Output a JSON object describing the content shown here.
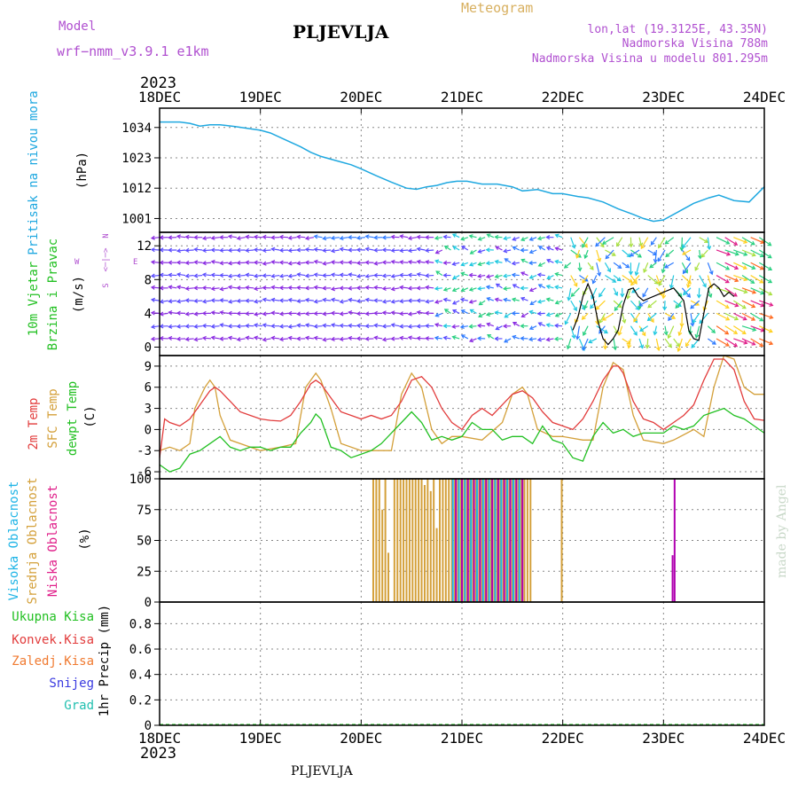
{
  "header": {
    "model_label": "Model",
    "model_value": "wrf−nmm_v3.9.1  e1km",
    "station": "PLJEVLJA",
    "meteogram": "Meteogram",
    "lonlat": "lon,lat (19.3125E, 43.35N)",
    "elevation": "Nadmorska Visina 788m",
    "model_elevation": "Nadmorska Visina u modelu 801.295m",
    "year_top": "2023",
    "year_bottom": "2023",
    "footer_station": "PLJEVLJA",
    "credit": "made by Angel"
  },
  "colors": {
    "pressure": "#1fa8e0",
    "temp2m": "#e23c3c",
    "sfc": "#d4a03a",
    "dew": "#22c022",
    "cloud_high": "#1fb4e6",
    "cloud_mid": "#d4a03a",
    "cloud_low": "#b000b0",
    "wind_label": "#22c022",
    "wind_dir": "#b050d0",
    "precip_total": "#22c022",
    "precip_conv": "#e23c3c",
    "precip_frozen": "#f07a30",
    "snow": "#3a3ae0",
    "hail": "#22c0b0"
  },
  "chart_data": [
    {
      "type": "line",
      "panel": "pressure",
      "ylabel_lines": [
        "Pritisak na nivou mora",
        "(hPa)"
      ],
      "xticks": [
        "18DEC",
        "19DEC",
        "20DEC",
        "21DEC",
        "22DEC",
        "23DEC",
        "24DEC"
      ],
      "yticks": [
        1001,
        1012,
        1023,
        1034
      ],
      "ylim": [
        996,
        1041
      ],
      "grid": true,
      "series": [
        {
          "x": [
            0,
            0.1,
            0.2,
            0.3,
            0.4,
            0.5,
            0.6,
            0.75,
            0.9,
            1.0,
            1.1,
            1.25,
            1.4,
            1.5,
            1.6,
            1.75,
            1.9,
            2.0,
            2.15,
            2.3,
            2.45,
            2.55,
            2.65,
            2.75,
            2.85,
            2.95,
            3.05,
            3.2,
            3.35,
            3.5,
            3.6,
            3.75,
            3.9,
            4.0,
            4.15,
            4.25,
            4.4,
            4.55,
            4.7,
            4.8,
            4.9,
            5.0,
            5.15,
            5.3,
            5.45,
            5.55,
            5.7,
            5.85,
            6.0
          ],
          "y": [
            1036,
            1036,
            1036,
            1035.5,
            1034.5,
            1035,
            1035,
            1034.3,
            1033.5,
            1033,
            1032,
            1029.5,
            1027,
            1025,
            1023.5,
            1022,
            1020.5,
            1019,
            1016.5,
            1014.2,
            1012,
            1011.6,
            1012.5,
            1013,
            1014,
            1014.5,
            1014.5,
            1013.5,
            1013.5,
            1012.5,
            1011,
            1011.5,
            1010,
            1010,
            1009,
            1008.5,
            1007,
            1004.5,
            1002.5,
            1001,
            1000,
            1000.5,
            1003.5,
            1006.5,
            1008.5,
            1009.5,
            1007.5,
            1007,
            1012.5
          ]
        }
      ]
    },
    {
      "type": "line",
      "panel": "wind",
      "ylabel_lines": [
        "10m Vjetar",
        "Brzina i Pravac",
        "(m/s)"
      ],
      "compass": [
        "W",
        "<─|─>",
        "E",
        "N",
        "S"
      ],
      "yticks": [
        0,
        4,
        8,
        12
      ],
      "ylim": [
        -1,
        13.6
      ],
      "grid": true,
      "series": [
        {
          "name": "speed",
          "x": [
            4.1,
            4.15,
            4.2,
            4.25,
            4.3,
            4.35,
            4.4,
            4.45,
            4.5,
            4.55,
            4.6,
            4.65,
            4.7,
            4.75,
            4.8,
            5.1,
            5.2,
            5.25,
            5.3,
            5.35,
            5.4,
            5.45,
            5.5,
            5.55,
            5.6,
            5.65,
            5.7
          ],
          "y": [
            2,
            3.5,
            6,
            7.5,
            6,
            3,
            1,
            0.3,
            1,
            2,
            5,
            6.8,
            7,
            6,
            5.5,
            7,
            5.5,
            2,
            1,
            0.8,
            4,
            7,
            7.5,
            7,
            6,
            6.5,
            6
          ]
        }
      ]
    },
    {
      "type": "line",
      "panel": "temperature",
      "ylabel_lines": [
        "2m Temp",
        "SFC Temp",
        "dewpt Temp",
        "(C)"
      ],
      "yticks": [
        -6,
        -3,
        0,
        3,
        6,
        9
      ],
      "ylim": [
        -7,
        10.5
      ],
      "grid": true,
      "series": [
        {
          "name": "2m Temp",
          "x": [
            0,
            0.05,
            0.1,
            0.2,
            0.3,
            0.4,
            0.5,
            0.55,
            0.6,
            0.7,
            0.8,
            0.9,
            1.0,
            1.1,
            1.2,
            1.3,
            1.4,
            1.5,
            1.55,
            1.6,
            1.7,
            1.8,
            1.9,
            2.0,
            2.1,
            2.2,
            2.3,
            2.4,
            2.5,
            2.6,
            2.7,
            2.8,
            2.9,
            3.0,
            3.1,
            3.2,
            3.3,
            3.4,
            3.5,
            3.6,
            3.7,
            3.8,
            3.9,
            4.0,
            4.1,
            4.2,
            4.3,
            4.4,
            4.5,
            4.55,
            4.6,
            4.7,
            4.8,
            4.9,
            5.0,
            5.1,
            5.2,
            5.3,
            5.4,
            5.5,
            5.6,
            5.7,
            5.8,
            5.9,
            6.0
          ],
          "y": [
            -4,
            1.5,
            1,
            0.5,
            1.5,
            3.5,
            5.5,
            6,
            5.5,
            4,
            2.5,
            2,
            1.5,
            1.3,
            1.2,
            2,
            4,
            6.5,
            7,
            6.5,
            4.5,
            2.5,
            2,
            1.5,
            2,
            1.5,
            2,
            4,
            7,
            7.5,
            6,
            3,
            1,
            0,
            2,
            3,
            2,
            3.5,
            5,
            5.5,
            4.5,
            2.5,
            1,
            0.5,
            0,
            1.5,
            4,
            7,
            9,
            9,
            8,
            4,
            1.5,
            1,
            0,
            1,
            2,
            3.5,
            7,
            10,
            10,
            8.5,
            4,
            1.5,
            1.3
          ]
        },
        {
          "name": "SFC Temp",
          "x": [
            0,
            0.1,
            0.2,
            0.3,
            0.35,
            0.45,
            0.5,
            0.55,
            0.6,
            0.7,
            0.9,
            1.0,
            1.2,
            1.35,
            1.45,
            1.55,
            1.6,
            1.7,
            1.8,
            2.0,
            2.2,
            2.3,
            2.4,
            2.5,
            2.6,
            2.7,
            2.8,
            2.9,
            3.0,
            3.2,
            3.4,
            3.5,
            3.6,
            3.65,
            3.75,
            3.9,
            4.0,
            4.2,
            4.3,
            4.4,
            4.5,
            4.6,
            4.7,
            4.8,
            5.0,
            5.1,
            5.3,
            5.4,
            5.5,
            5.6,
            5.7,
            5.8,
            5.9,
            6.0
          ],
          "y": [
            -3,
            -2.5,
            -3,
            -2,
            3,
            6,
            7,
            6,
            2,
            -1.5,
            -2.5,
            -3,
            -2.5,
            -2,
            6,
            8,
            7,
            3,
            -2,
            -3,
            -3,
            -3,
            5,
            8,
            6,
            0,
            -2,
            -1,
            -1,
            -1.5,
            1,
            5,
            6,
            5,
            0,
            -1,
            -1,
            -1.5,
            -1.5,
            6,
            9.5,
            8.5,
            2,
            -1.5,
            -2,
            -1.5,
            0,
            -1,
            6,
            10.5,
            10,
            6,
            5,
            5
          ]
        },
        {
          "name": "dewpt Temp",
          "x": [
            0,
            0.1,
            0.2,
            0.3,
            0.4,
            0.5,
            0.6,
            0.7,
            0.8,
            0.9,
            1.0,
            1.1,
            1.2,
            1.3,
            1.4,
            1.5,
            1.55,
            1.6,
            1.7,
            1.8,
            1.9,
            2.0,
            2.1,
            2.2,
            2.3,
            2.4,
            2.5,
            2.6,
            2.7,
            2.8,
            2.9,
            3.0,
            3.1,
            3.2,
            3.3,
            3.4,
            3.5,
            3.6,
            3.7,
            3.8,
            3.9,
            4.0,
            4.1,
            4.2,
            4.3,
            4.4,
            4.5,
            4.6,
            4.7,
            4.8,
            4.9,
            5.0,
            5.1,
            5.2,
            5.3,
            5.4,
            5.5,
            5.6,
            5.7,
            5.8,
            5.9,
            6.0
          ],
          "y": [
            -5,
            -6,
            -5.5,
            -3.5,
            -3,
            -2,
            -1,
            -2.5,
            -3,
            -2.5,
            -2.5,
            -3,
            -2.5,
            -2.5,
            -0.5,
            1,
            2.2,
            1.5,
            -2.5,
            -3,
            -4,
            -3.5,
            -3,
            -2,
            -0.5,
            1,
            2.5,
            1,
            -1.5,
            -1,
            -1.5,
            -1,
            1,
            0,
            0,
            -1.5,
            -1,
            -1,
            -2,
            0.5,
            -1.5,
            -2,
            -4,
            -4.5,
            -1,
            1,
            -0.5,
            0,
            -1,
            -0.5,
            -0.5,
            -0.5,
            0.5,
            0,
            0.5,
            2,
            2.5,
            3,
            2,
            1.5,
            0.5,
            -0.5
          ]
        }
      ]
    },
    {
      "type": "bar",
      "panel": "clouds",
      "ylabel_lines": [
        "Visoka Oblacnost",
        "Srednja Oblacnost",
        "Niska Oblacnost",
        "(%)"
      ],
      "yticks": [
        0,
        25,
        50,
        75,
        100
      ],
      "ylim": [
        0,
        100
      ],
      "grid": true,
      "bars_mid": {
        "x": [
          2.12,
          2.15,
          2.18,
          2.21,
          2.24,
          2.27,
          2.33,
          2.36,
          2.39,
          2.42,
          2.45,
          2.48,
          2.51,
          2.54,
          2.57,
          2.6,
          2.63,
          2.66,
          2.69,
          2.72,
          2.75,
          2.78,
          2.81,
          2.84,
          2.87,
          2.9,
          2.93,
          2.96,
          2.99,
          3.02,
          3.05,
          3.08,
          3.11,
          3.14,
          3.17,
          3.2,
          3.23,
          3.26,
          3.29,
          3.32,
          3.35,
          3.38,
          3.41,
          3.44,
          3.47,
          3.5,
          3.53,
          3.56,
          3.59,
          3.62,
          3.65,
          3.68,
          3.99
        ],
        "y": [
          100,
          100,
          100,
          75,
          100,
          40,
          100,
          100,
          100,
          100,
          100,
          100,
          100,
          100,
          100,
          100,
          95,
          100,
          90,
          100,
          60,
          100,
          100,
          100,
          100,
          100,
          100,
          100,
          100,
          100,
          100,
          100,
          100,
          100,
          100,
          100,
          100,
          100,
          100,
          100,
          100,
          100,
          100,
          100,
          100,
          100,
          100,
          100,
          100,
          100,
          100,
          100,
          100
        ]
      },
      "bars_high": {
        "x": [
          2.91,
          2.97,
          3.03,
          3.09,
          3.15,
          3.21,
          3.27,
          3.33,
          3.39,
          3.45,
          3.51,
          3.57
        ],
        "y": [
          100,
          100,
          100,
          100,
          100,
          100,
          100,
          100,
          100,
          100,
          100,
          100
        ]
      },
      "bars_low": {
        "x": [
          2.94,
          3.0,
          3.06,
          3.12,
          3.18,
          3.24,
          3.3,
          3.36,
          3.42,
          3.48,
          3.54,
          3.6,
          5.09,
          5.11
        ],
        "y": [
          100,
          100,
          100,
          100,
          100,
          100,
          100,
          100,
          100,
          100,
          100,
          100,
          38,
          100
        ]
      }
    },
    {
      "type": "line",
      "panel": "precip",
      "ylabel_lines": [
        "1hr Precip (mm)"
      ],
      "legend": [
        "Ukupna  Kisa",
        "Konvek.Kisa",
        "Zaledj.Kisa",
        "Snijeg",
        "Grad"
      ],
      "yticks": [
        0,
        0.2,
        0.4,
        0.6,
        0.8
      ],
      "yticklabels": [
        "0",
        "0.2",
        "0.4",
        "0.6",
        "0.8"
      ],
      "ylim": [
        0,
        0.97
      ],
      "grid": true,
      "series": []
    }
  ]
}
